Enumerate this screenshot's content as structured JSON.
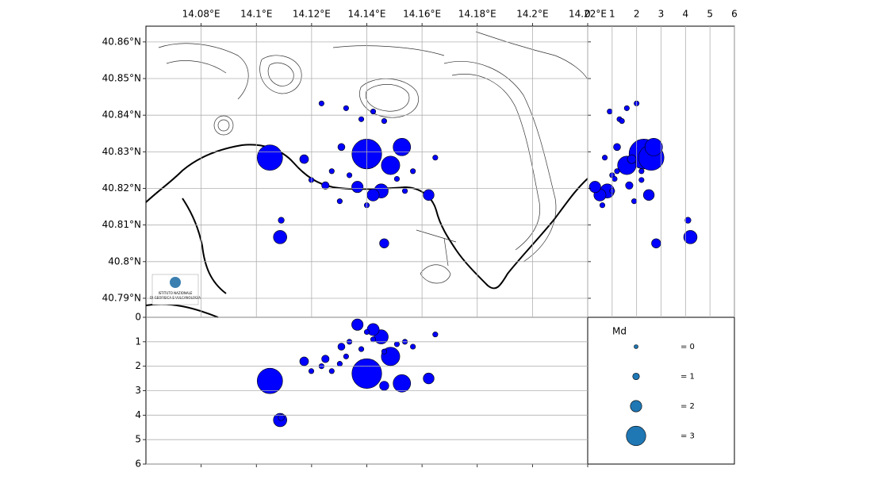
{
  "chart_data": {
    "type": "scatter",
    "color": "#0000ff",
    "x": [
      14.14,
      14.1049,
      14.1086,
      14.109,
      14.1463,
      14.1527,
      14.1486,
      14.1452,
      14.1423,
      14.1366,
      14.1624,
      14.1173,
      14.1308,
      14.125,
      14.1337,
      14.138,
      14.1423,
      14.1463,
      14.1236,
      14.1325,
      14.1567,
      14.1648,
      14.1199,
      14.1302,
      14.1509,
      14.1538,
      14.14,
      14.1273
    ],
    "y": [
      40.8294,
      40.8284,
      40.8067,
      40.8113,
      40.805,
      40.8313,
      40.8263,
      40.8193,
      40.8182,
      40.8204,
      40.8182,
      40.828,
      40.8313,
      40.8208,
      40.8236,
      40.8389,
      40.841,
      40.8384,
      40.8432,
      40.8419,
      40.8247,
      40.8284,
      40.8223,
      40.8165,
      40.8226,
      40.8193,
      40.8154,
      40.8247
    ],
    "depth": [
      2.3,
      2.6,
      4.2,
      4.1,
      2.8,
      2.7,
      1.6,
      0.8,
      0.5,
      0.3,
      2.5,
      1.8,
      1.2,
      1.7,
      1.0,
      1.3,
      0.9,
      1.4,
      2.0,
      1.6,
      1.2,
      0.7,
      2.2,
      1.9,
      1.1,
      1.0,
      0.6,
      2.2
    ],
    "md": [
      3.8,
      3.5,
      2.3,
      0.8,
      1.6,
      2.8,
      2.9,
      2.4,
      2.1,
      2.0,
      1.9,
      1.5,
      1.1,
      1.2,
      0.5,
      0.5,
      0.5,
      0.5,
      0.5,
      0.5,
      0.5,
      0.5,
      0.5,
      0.5,
      0.5,
      0.5,
      0.5,
      0.5
    ],
    "xlim": [
      14.06,
      14.22
    ],
    "ylim": [
      40.7848,
      40.8643
    ],
    "xticks": [
      {
        "value": 14.08,
        "label": "14.08°E"
      },
      {
        "value": 14.1,
        "label": "14.1°E"
      },
      {
        "value": 14.12,
        "label": "14.12°E"
      },
      {
        "value": 14.14,
        "label": "14.14°E"
      },
      {
        "value": 14.16,
        "label": "14.16°E"
      },
      {
        "value": 14.18,
        "label": "14.18°E"
      },
      {
        "value": 14.2,
        "label": "14.2°E"
      },
      {
        "value": 14.22,
        "label": "14.22°E"
      }
    ],
    "yticks": [
      {
        "value": 40.79,
        "label": "40.79°N"
      },
      {
        "value": 40.8,
        "label": "40.8°N"
      },
      {
        "value": 40.81,
        "label": "40.81°N"
      },
      {
        "value": 40.82,
        "label": "40.82°N"
      },
      {
        "value": 40.83,
        "label": "40.83°N"
      },
      {
        "value": 40.84,
        "label": "40.84°N"
      },
      {
        "value": 40.85,
        "label": "40.85°N"
      },
      {
        "value": 40.86,
        "label": "40.86°N"
      }
    ],
    "depth_lim": [
      0,
      6
    ],
    "depth_ticks": [
      0,
      1,
      2,
      3,
      4,
      5,
      6
    ],
    "legend": {
      "title": "Md",
      "sizes": [
        {
          "value": 0,
          "label": "= 0"
        },
        {
          "value": 1,
          "label": "= 1"
        },
        {
          "value": 2,
          "label": "= 2"
        },
        {
          "value": 3,
          "label": "= 3"
        }
      ]
    },
    "logo_text": [
      "ISTITUTO NAZIONALE",
      "DI GEOFISICA E VULCANOLOGIA"
    ],
    "grid": true
  }
}
